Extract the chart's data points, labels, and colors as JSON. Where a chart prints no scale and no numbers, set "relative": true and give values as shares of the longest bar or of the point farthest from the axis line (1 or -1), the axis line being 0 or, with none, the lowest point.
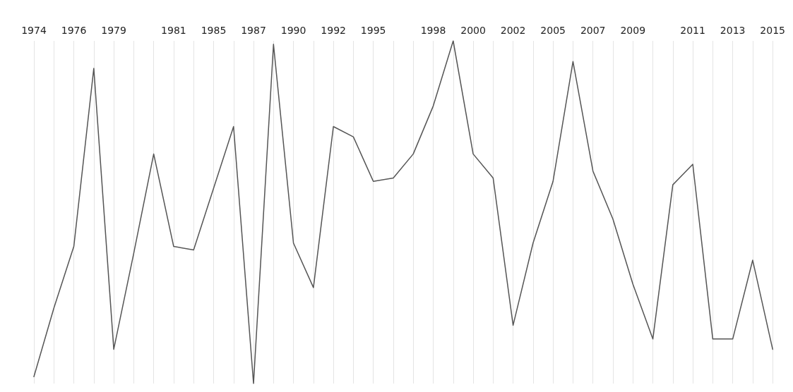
{
  "chart_data": {
    "type": "line",
    "relative": true,
    "grid": "x",
    "marker": "none",
    "line_style": "solid",
    "categories": [
      "1974",
      null,
      "1976",
      null,
      "1979",
      null,
      null,
      "1981",
      null,
      "1985",
      null,
      "1987",
      null,
      "1990",
      null,
      "1992",
      null,
      "1995",
      null,
      null,
      "1998",
      null,
      "2000",
      null,
      "2002",
      null,
      "2005",
      null,
      "2007",
      null,
      "2009",
      null,
      null,
      "2011",
      null,
      "2013",
      null,
      "2015"
    ],
    "series": [
      {
        "color": "#555555",
        "values": [
          0.02,
          0.22,
          0.4,
          0.92,
          0.1,
          0.38,
          0.67,
          0.4,
          0.39,
          0.57,
          0.75,
          0,
          0.99,
          0.41,
          0.28,
          0.75,
          0.72,
          0.59,
          0.6,
          0.67,
          0.81,
          1,
          0.67,
          0.6,
          0.17,
          0.41,
          0.59,
          0.94,
          0.62,
          0.48,
          0.29,
          0.13,
          0.58,
          0.64,
          0.13,
          0.13,
          0.36,
          0.1
        ]
      }
    ]
  }
}
